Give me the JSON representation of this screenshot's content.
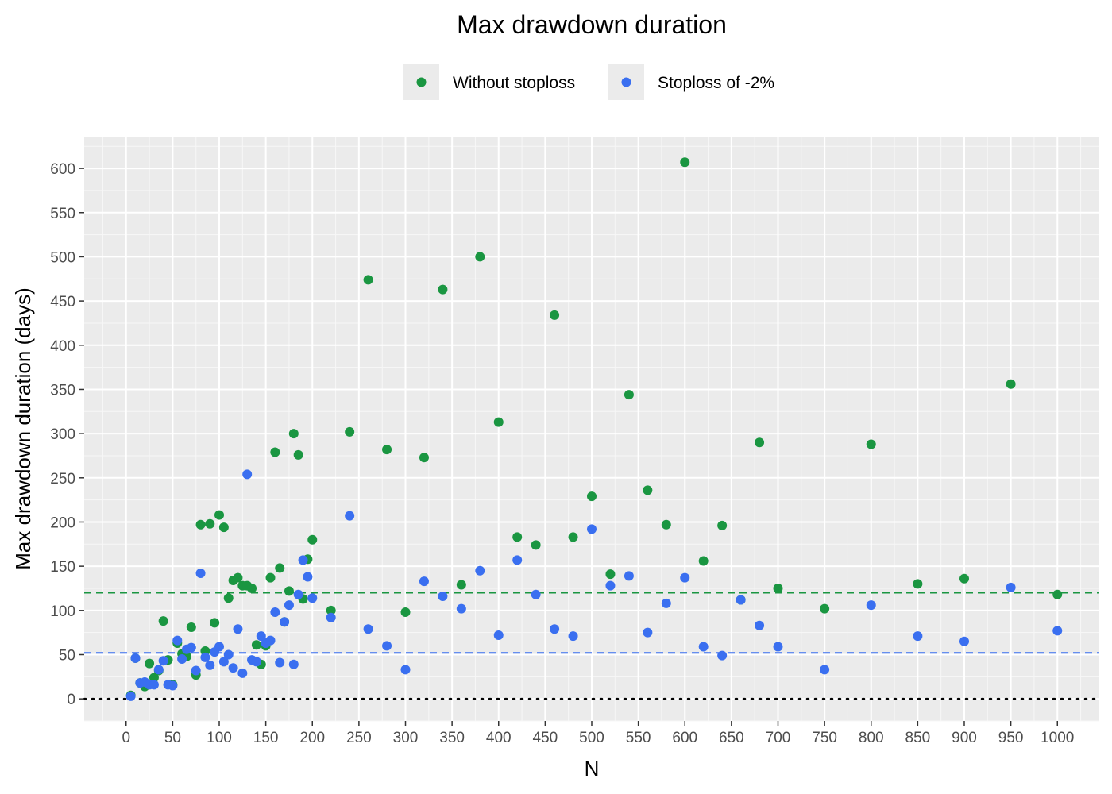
{
  "chart_data": {
    "type": "scatter",
    "title": "Max drawdown duration",
    "xlabel": "N",
    "ylabel": "Max drawdown duration (days)",
    "xlim": [
      -45,
      1045
    ],
    "ylim": [
      -25,
      636
    ],
    "x_ticks": [
      0,
      50,
      100,
      150,
      200,
      250,
      300,
      350,
      400,
      450,
      500,
      550,
      600,
      650,
      700,
      750,
      800,
      850,
      900,
      950,
      1000
    ],
    "y_ticks": [
      0,
      50,
      100,
      150,
      200,
      250,
      300,
      350,
      400,
      450,
      500,
      550,
      600
    ],
    "grid": true,
    "legend_position": "top",
    "background": "#ebebeb",
    "series": [
      {
        "name": "Without stoploss",
        "color": "#1a9641",
        "mean_line": 120,
        "points": [
          [
            5,
            4
          ],
          [
            10,
            46
          ],
          [
            15,
            18
          ],
          [
            20,
            14
          ],
          [
            25,
            40
          ],
          [
            30,
            24
          ],
          [
            35,
            32
          ],
          [
            40,
            88
          ],
          [
            45,
            44
          ],
          [
            50,
            16
          ],
          [
            55,
            63
          ],
          [
            60,
            51
          ],
          [
            65,
            48
          ],
          [
            70,
            81
          ],
          [
            75,
            27
          ],
          [
            80,
            197
          ],
          [
            85,
            54
          ],
          [
            90,
            198
          ],
          [
            95,
            86
          ],
          [
            100,
            208
          ],
          [
            105,
            194
          ],
          [
            110,
            114
          ],
          [
            115,
            134
          ],
          [
            120,
            137
          ],
          [
            125,
            128
          ],
          [
            130,
            128
          ],
          [
            135,
            125
          ],
          [
            140,
            61
          ],
          [
            145,
            39
          ],
          [
            150,
            60
          ],
          [
            155,
            137
          ],
          [
            160,
            279
          ],
          [
            165,
            148
          ],
          [
            170,
            87
          ],
          [
            175,
            122
          ],
          [
            180,
            300
          ],
          [
            185,
            276
          ],
          [
            190,
            113
          ],
          [
            195,
            158
          ],
          [
            200,
            180
          ],
          [
            220,
            100
          ],
          [
            240,
            302
          ],
          [
            260,
            474
          ],
          [
            280,
            282
          ],
          [
            300,
            98
          ],
          [
            320,
            273
          ],
          [
            340,
            463
          ],
          [
            360,
            129
          ],
          [
            380,
            500
          ],
          [
            400,
            313
          ],
          [
            420,
            183
          ],
          [
            440,
            174
          ],
          [
            460,
            434
          ],
          [
            480,
            183
          ],
          [
            500,
            229
          ],
          [
            520,
            141
          ],
          [
            540,
            344
          ],
          [
            560,
            236
          ],
          [
            580,
            197
          ],
          [
            600,
            607
          ],
          [
            620,
            156
          ],
          [
            640,
            196
          ],
          [
            660,
            112
          ],
          [
            680,
            290
          ],
          [
            700,
            125
          ],
          [
            750,
            102
          ],
          [
            800,
            288
          ],
          [
            850,
            130
          ],
          [
            900,
            136
          ],
          [
            950,
            356
          ],
          [
            1000,
            118
          ]
        ]
      },
      {
        "name": "Stoploss of -2%",
        "color": "#3a6ff0",
        "mean_line": 52,
        "points": [
          [
            5,
            3
          ],
          [
            10,
            46
          ],
          [
            15,
            18
          ],
          [
            20,
            19
          ],
          [
            25,
            16
          ],
          [
            30,
            16
          ],
          [
            35,
            33
          ],
          [
            40,
            43
          ],
          [
            45,
            16
          ],
          [
            50,
            15
          ],
          [
            55,
            66
          ],
          [
            60,
            45
          ],
          [
            65,
            56
          ],
          [
            70,
            58
          ],
          [
            75,
            32
          ],
          [
            80,
            142
          ],
          [
            85,
            47
          ],
          [
            90,
            38
          ],
          [
            95,
            53
          ],
          [
            100,
            59
          ],
          [
            105,
            42
          ],
          [
            110,
            50
          ],
          [
            115,
            35
          ],
          [
            120,
            79
          ],
          [
            125,
            29
          ],
          [
            130,
            254
          ],
          [
            135,
            44
          ],
          [
            140,
            42
          ],
          [
            145,
            71
          ],
          [
            150,
            63
          ],
          [
            155,
            66
          ],
          [
            160,
            98
          ],
          [
            165,
            41
          ],
          [
            170,
            87
          ],
          [
            175,
            106
          ],
          [
            180,
            39
          ],
          [
            185,
            118
          ],
          [
            190,
            157
          ],
          [
            195,
            138
          ],
          [
            200,
            114
          ],
          [
            220,
            92
          ],
          [
            240,
            207
          ],
          [
            260,
            79
          ],
          [
            280,
            60
          ],
          [
            300,
            33
          ],
          [
            320,
            133
          ],
          [
            340,
            116
          ],
          [
            360,
            102
          ],
          [
            380,
            145
          ],
          [
            400,
            72
          ],
          [
            420,
            157
          ],
          [
            440,
            118
          ],
          [
            460,
            79
          ],
          [
            480,
            71
          ],
          [
            500,
            192
          ],
          [
            520,
            128
          ],
          [
            540,
            139
          ],
          [
            560,
            75
          ],
          [
            580,
            108
          ],
          [
            600,
            137
          ],
          [
            620,
            59
          ],
          [
            640,
            49
          ],
          [
            660,
            112
          ],
          [
            680,
            83
          ],
          [
            700,
            59
          ],
          [
            750,
            33
          ],
          [
            800,
            106
          ],
          [
            850,
            71
          ],
          [
            900,
            65
          ],
          [
            950,
            126
          ],
          [
            1000,
            77
          ]
        ]
      }
    ],
    "reference_line": {
      "y": 0,
      "style": "dotted",
      "color": "#000000"
    }
  }
}
